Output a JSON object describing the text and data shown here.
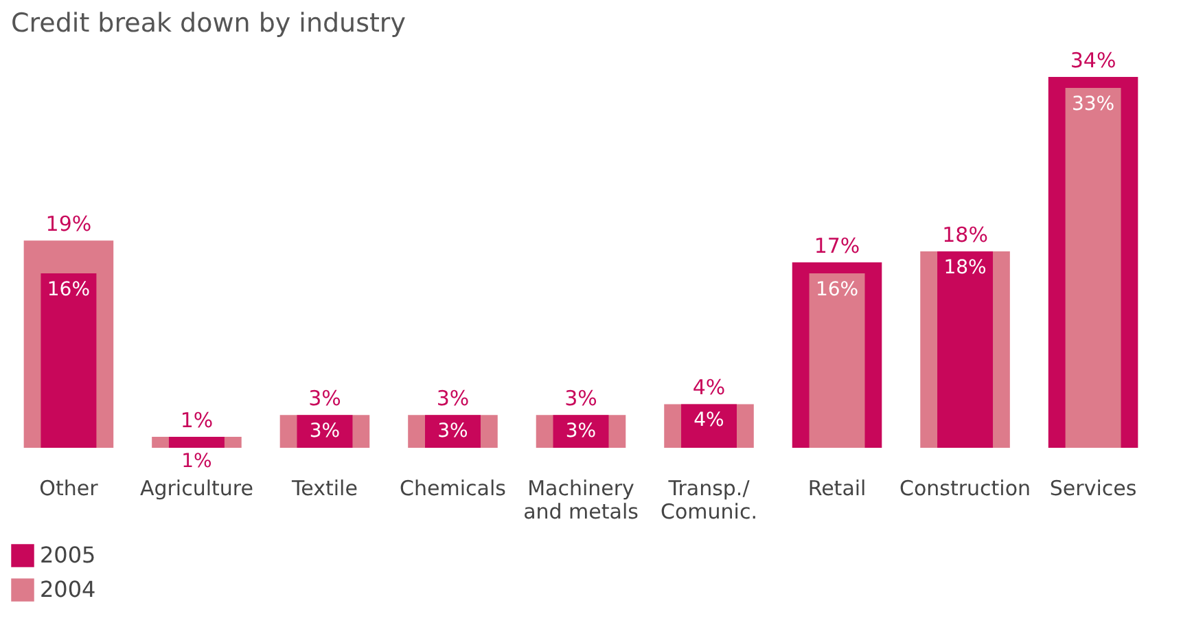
{
  "chart_data": {
    "type": "bar",
    "title": "Credit break down by industry",
    "categories": [
      "Other",
      "Agriculture",
      "Textile",
      "Chemicals",
      "Machinery and metals",
      "Transp./ Comunic.",
      "Retail",
      "Construction",
      "Services"
    ],
    "series": [
      {
        "name": "2005",
        "color": "#c8075a",
        "values": [
          16,
          1,
          3,
          3,
          3,
          4,
          17,
          18,
          34
        ],
        "value_labels": [
          "16%",
          "1%",
          "3%",
          "3%",
          "3%",
          "4%",
          "17%",
          "18%",
          "34%"
        ]
      },
      {
        "name": "2004",
        "color": "#dd7b8b",
        "values": [
          19,
          1,
          3,
          3,
          3,
          4,
          16,
          18,
          33
        ],
        "value_labels": [
          "19%",
          "1%",
          "3%",
          "3%",
          "3%",
          "4%",
          "16%",
          "18%",
          "33%"
        ]
      }
    ],
    "legend": "bottom left"
  }
}
